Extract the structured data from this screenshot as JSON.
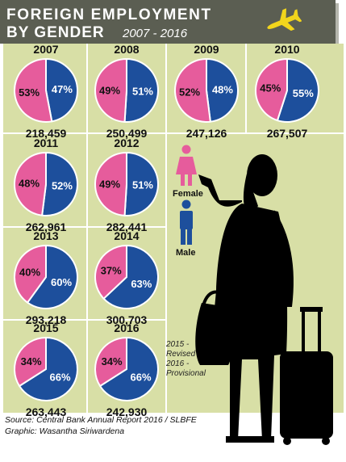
{
  "header": {
    "title_line1": "FOREIGN  EMPLOYMENT",
    "title_line2": "BY GENDER",
    "subtitle": "2007 - 2016"
  },
  "colors": {
    "female": "#e65c9c",
    "male": "#1d4f9c",
    "panel": "#d8dfa6",
    "header": "#5b5e52"
  },
  "chart_data": {
    "type": "pie",
    "title": "FOREIGN EMPLOYMENT BY GENDER",
    "subtitle": "2007 - 2016",
    "legend": [
      "Female",
      "Male"
    ],
    "series_names": [
      "Female",
      "Male"
    ],
    "charts": [
      {
        "year": "2007",
        "female": 53,
        "male": 47,
        "female_label": "53%",
        "male_label": "47%",
        "total": "218,459"
      },
      {
        "year": "2008",
        "female": 49,
        "male": 51,
        "female_label": "49%",
        "male_label": "51%",
        "total": "250,499"
      },
      {
        "year": "2009",
        "female": 52,
        "male": 48,
        "female_label": "52%",
        "male_label": "48%",
        "total": "247,126"
      },
      {
        "year": "2010",
        "female": 45,
        "male": 55,
        "female_label": "45%",
        "male_label": "55%",
        "total": "267,507"
      },
      {
        "year": "2011",
        "female": 48,
        "male": 52,
        "female_label": "48%",
        "male_label": "52%",
        "total": "262,961"
      },
      {
        "year": "2012",
        "female": 49,
        "male": 51,
        "female_label": "49%",
        "male_label": "51%",
        "total": "282,441"
      },
      {
        "year": "2013",
        "female": 40,
        "male": 60,
        "female_label": "40%",
        "male_label": "60%",
        "total": "293,218"
      },
      {
        "year": "2014",
        "female": 37,
        "male": 63,
        "female_label": "37%",
        "male_label": "63%",
        "total": "300,703"
      },
      {
        "year": "2015",
        "female": 34,
        "male": 66,
        "female_label": "34%",
        "male_label": "66%",
        "total": "263,443"
      },
      {
        "year": "2016",
        "female": 34,
        "male": 66,
        "female_label": "34%",
        "male_label": "66%",
        "total": "242,930"
      }
    ]
  },
  "legend": {
    "female_label": "Female",
    "male_label": "Male"
  },
  "note": {
    "line1": "2015 -",
    "line2": "Revised",
    "line3": "2016 -",
    "line4": "Provisional"
  },
  "footer": {
    "source": "Source: Central Bank Annual Report 2016 / SLBFE",
    "credit": "Graphic: Wasantha Siriwardena"
  },
  "icons": {
    "plane": "airplane-icon",
    "female": "female-person-icon",
    "male": "male-person-icon",
    "traveller": "woman-with-suitcase-silhouette"
  }
}
